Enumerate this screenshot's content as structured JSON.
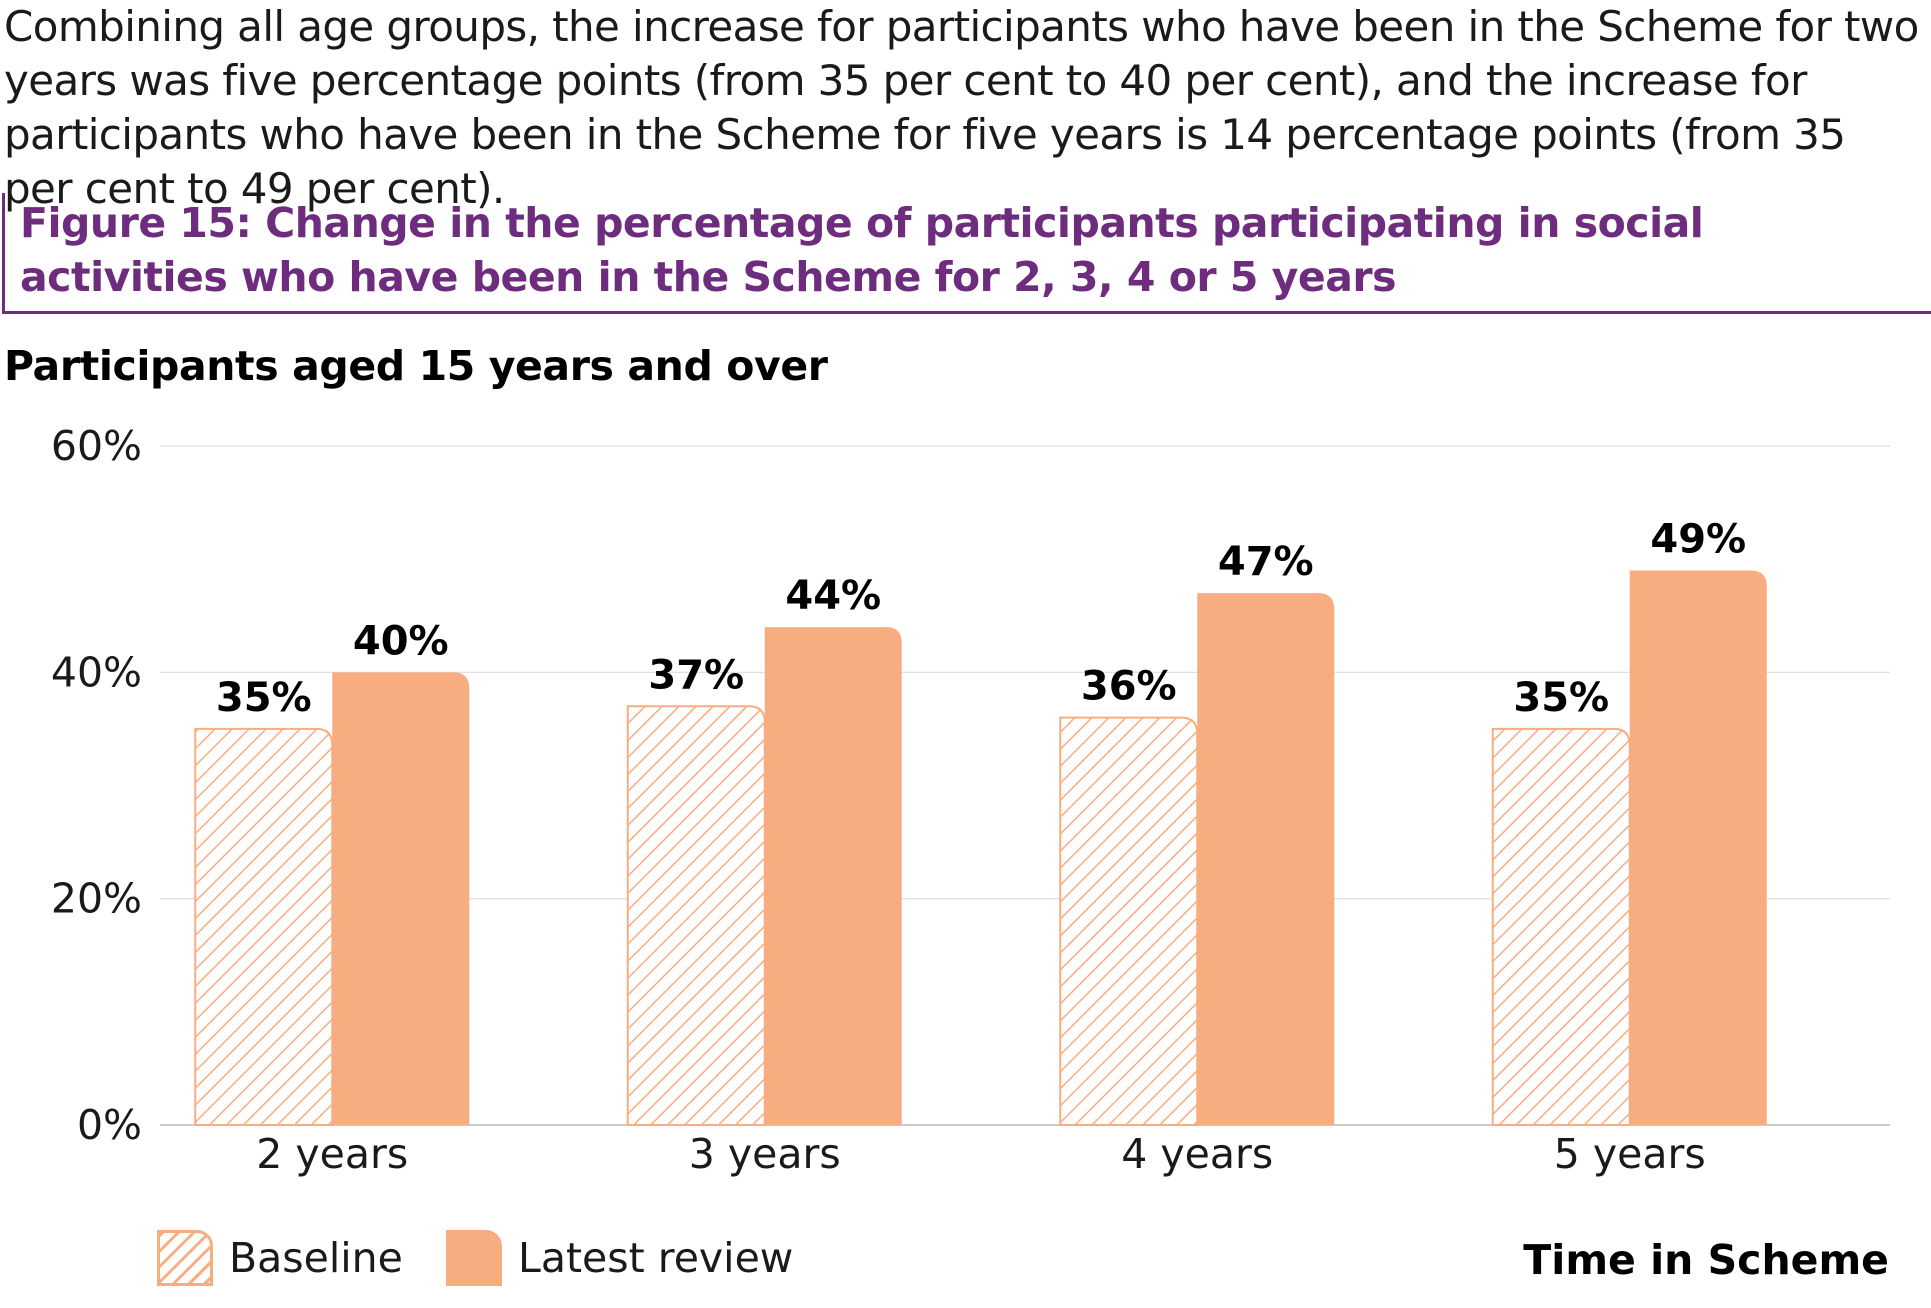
{
  "intro_text": "Combining all age groups, the increase for participants who have been in the Scheme for two years was five percentage points (from 35 per cent to 40 per cent), and the increase for participants who have been in the Scheme for five years is 14 percentage points (from 35 per cent to 49 per cent).",
  "figure_title": "Figure 15: Change in the percentage of participants participating in social activities who have been in the Scheme for 2, 3, 4 or 5 years",
  "colors": {
    "accent": "#6e2c7e",
    "latest": "#f8ad80",
    "baseline_hatch": "#f8ad80",
    "grid": "#dddddd"
  },
  "chart_data": {
    "type": "bar",
    "title": "Participants aged 15 years and over",
    "xlabel": "Time in Scheme",
    "ylabel": "",
    "ylim": [
      0,
      60
    ],
    "yticks": [
      "0%",
      "20%",
      "40%",
      "60%"
    ],
    "ytick_values": [
      0,
      20,
      40,
      60
    ],
    "categories": [
      "2 years",
      "3 years",
      "4 years",
      "5 years"
    ],
    "series": [
      {
        "name": "Baseline",
        "values": [
          35,
          37,
          36,
          35
        ],
        "labels": [
          "35%",
          "37%",
          "36%",
          "35%"
        ],
        "style": "hatched"
      },
      {
        "name": "Latest review",
        "values": [
          40,
          44,
          47,
          49
        ],
        "labels": [
          "40%",
          "44%",
          "47%",
          "49%"
        ],
        "style": "solid"
      }
    ],
    "legend": "bottom-left",
    "grid": true
  }
}
